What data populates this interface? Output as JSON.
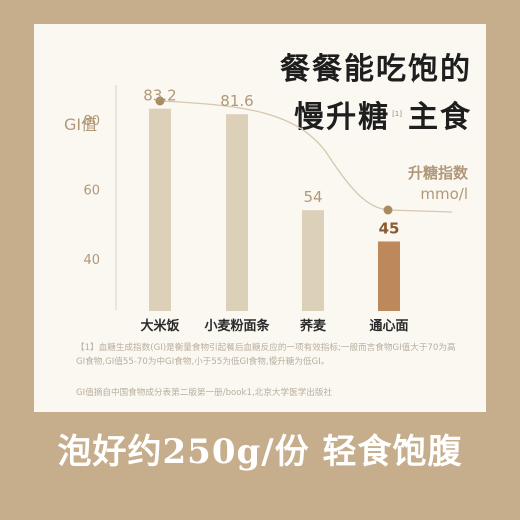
{
  "headline": {
    "line1": "餐餐能吃饱的",
    "line2": "慢升糖",
    "ref": "[1]",
    "line2b": "主食"
  },
  "chart_data": {
    "type": "bar",
    "ylabel": "GI值",
    "categories": [
      "大米饭",
      "小麦粉面条",
      "荞麦",
      "通心面"
    ],
    "values": [
      83.2,
      81.6,
      54,
      45
    ],
    "value_labels": [
      "83.2",
      "81.6",
      "54",
      "45"
    ],
    "yticks": [
      40,
      60,
      80
    ],
    "ylim": [
      25,
      90
    ],
    "highlight_index": 3,
    "curve_label": [
      "升糖指数",
      "mmo/l"
    ],
    "colors": {
      "bar": "#ddd0b9",
      "highlight": "#bd895a",
      "label": "#b09878",
      "curve": "#d6c7ae",
      "dot": "#a98b62"
    }
  },
  "footnote": "【1】血糖生成指数(GI)是衡量食物引起餐后血糖反应的一项有效指标;一般而言食物GI值大于70为高GI食物,GI值55-70为中GI食物,小于55为低GI食物,慢升糖为低GI。",
  "source": "GI值摘自中国食物成分表第二版第一册/book1,北京大学医学出版社",
  "banner": "泡好约250g/份 轻食饱腹"
}
